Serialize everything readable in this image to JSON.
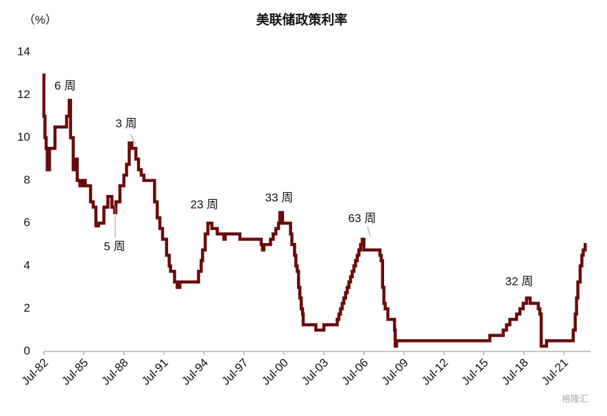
{
  "chart_data": {
    "type": "line",
    "title": "美联储政策利率",
    "y_unit": "（%）",
    "series": [
      {
        "name": "美联储政策利率",
        "color": "#6b0a0a",
        "x": [
          1982.5,
          1982.58,
          1982.67,
          1982.75,
          1982.92,
          1983.33,
          1984.2,
          1984.4,
          1984.5,
          1984.7,
          1984.9,
          1985.0,
          1985.2,
          1985.4,
          1985.6,
          1986.0,
          1986.2,
          1986.4,
          1986.6,
          1987.0,
          1987.3,
          1987.6,
          1987.8,
          1987.9,
          1988.2,
          1988.5,
          1988.7,
          1988.9,
          1989.1,
          1989.4,
          1989.6,
          1989.8,
          1990.0,
          1990.8,
          1991.0,
          1991.2,
          1991.4,
          1991.7,
          1991.9,
          1992.0,
          1992.3,
          1992.5,
          1992.7,
          1994.1,
          1994.3,
          1994.4,
          1994.6,
          1994.8,
          1995.1,
          1995.5,
          1996.0,
          1996.1,
          1997.2,
          1998.8,
          1998.9,
          1999.0,
          1999.5,
          1999.7,
          1999.9,
          2000.1,
          2000.2,
          2000.4,
          2001.0,
          2001.1,
          2001.3,
          2001.4,
          2001.5,
          2001.6,
          2001.7,
          2001.8,
          2001.9,
          2001.95,
          2002.9,
          2003.5,
          2004.5,
          2004.625,
          2004.75,
          2004.875,
          2005.0,
          2005.125,
          2005.25,
          2005.375,
          2005.5,
          2005.625,
          2005.75,
          2005.875,
          2006.0,
          2006.125,
          2006.25,
          2006.375,
          2006.5,
          2007.7,
          2007.8,
          2007.9,
          2008.0,
          2008.1,
          2008.3,
          2008.8,
          2008.85,
          2008.95,
          2015.95,
          2016.95,
          2017.2,
          2017.45,
          2017.95,
          2018.2,
          2018.45,
          2018.7,
          2018.97,
          2019.58,
          2019.7,
          2019.8,
          2020.2,
          2022.2,
          2022.35,
          2022.45,
          2022.55,
          2022.72,
          2022.85,
          2022.95,
          2023.1,
          2023.2
        ],
        "values": [
          13,
          11,
          10,
          9.5,
          8.5,
          9.5,
          10.5,
          11,
          11.75,
          10,
          8.5,
          9,
          8,
          7.75,
          8,
          7.75,
          7,
          6.75,
          5.875,
          6,
          6.75,
          7.25,
          6.75,
          6.5,
          7,
          7.75,
          8.25,
          8.75,
          9.75,
          9.5,
          9,
          8.5,
          8.25,
          8,
          7,
          6.25,
          5.75,
          5.25,
          4.5,
          4,
          3.75,
          3.25,
          3,
          3.25,
          3.75,
          4.25,
          4.75,
          5.5,
          6,
          5.75,
          5.5,
          5.25,
          5.5,
          5.25,
          5,
          4.75,
          5,
          5.25,
          5.5,
          5.75,
          6,
          6.5,
          6,
          5.5,
          5,
          4.5,
          4,
          3.75,
          3,
          2.5,
          2,
          1.75,
          1.25,
          1,
          1.25,
          1.5,
          1.75,
          2,
          2.25,
          2.5,
          2.75,
          3,
          3.25,
          3.5,
          3.75,
          4,
          4.25,
          4.5,
          4.75,
          5,
          5.25,
          4.75,
          4.5,
          4.25,
          3,
          2.25,
          2,
          1.5,
          1,
          0.25,
          0.5,
          0.75,
          1,
          1.25,
          1.5,
          1.75,
          2,
          2.25,
          2.5,
          2.25,
          2,
          1.75,
          0.25,
          0.5,
          1,
          1.75,
          2.5,
          3.25,
          4,
          4.5,
          4.75,
          5
        ]
      }
    ],
    "xlim": [
      1982.5,
      2023.5
    ],
    "xticks": [
      {
        "value": 1982.5,
        "label": "Jul-82"
      },
      {
        "value": 1985.5,
        "label": "Jul-85"
      },
      {
        "value": 1988.5,
        "label": "Jul-88"
      },
      {
        "value": 1991.5,
        "label": "Jul-91"
      },
      {
        "value": 1994.5,
        "label": "Jul-94"
      },
      {
        "value": 1997.5,
        "label": "Jul-97"
      },
      {
        "value": 2000.5,
        "label": "Jul-00"
      },
      {
        "value": 2003.5,
        "label": "Jul-03"
      },
      {
        "value": 2006.5,
        "label": "Jul-06"
      },
      {
        "value": 2009.5,
        "label": "Jul-09"
      },
      {
        "value": 2012.5,
        "label": "Jul-12"
      },
      {
        "value": 2015.5,
        "label": "Jul-15"
      },
      {
        "value": 2018.5,
        "label": "Jul-18"
      },
      {
        "value": 2021.5,
        "label": "Jul-21"
      }
    ],
    "ylim": [
      0,
      14
    ],
    "yticks": [
      0,
      2,
      4,
      6,
      8,
      10,
      12,
      14
    ],
    "annotations": [
      "6 周",
      "3 周",
      "5 周",
      "23 周",
      "33 周",
      "63 周",
      "32 周"
    ],
    "watermark": "格隆汇"
  }
}
